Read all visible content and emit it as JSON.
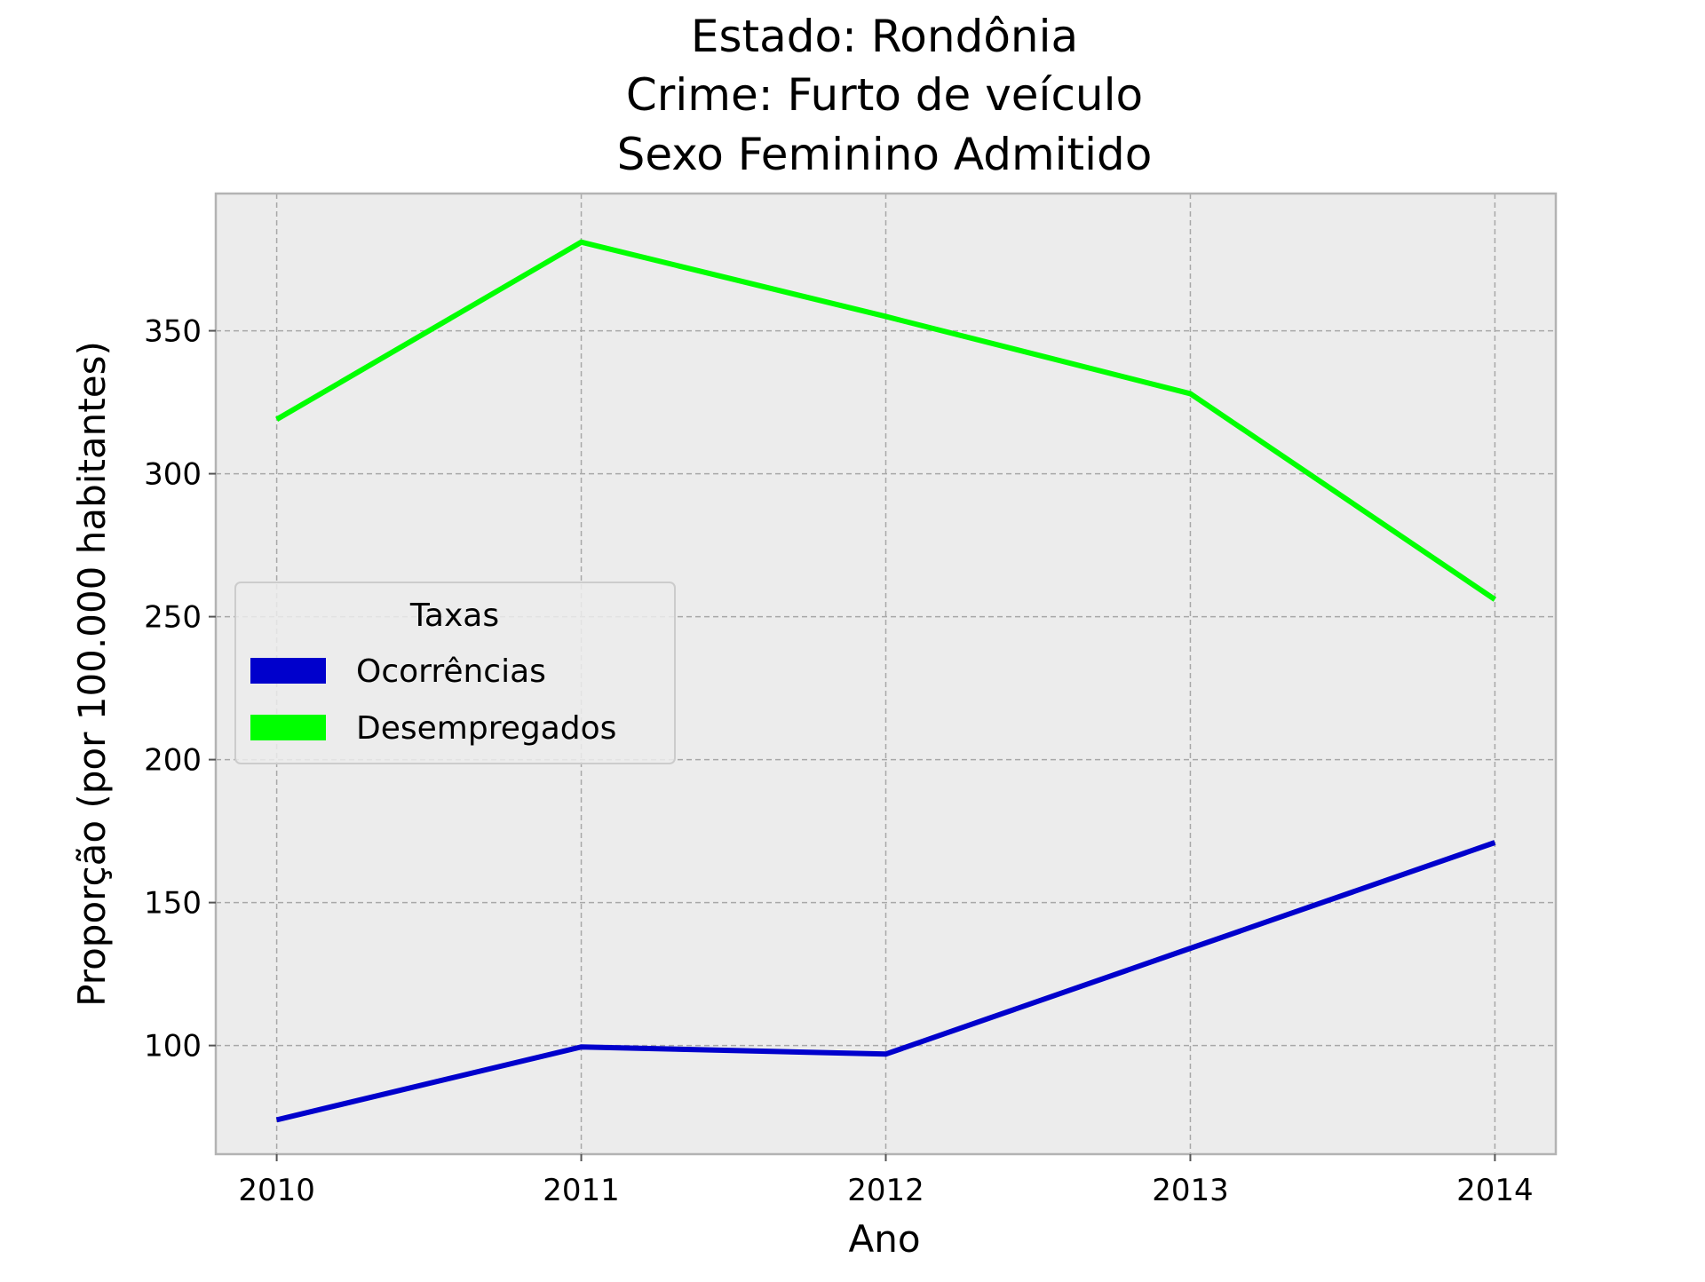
{
  "chart_data": {
    "type": "line",
    "title_lines": [
      "Estado: Rondônia",
      "Crime: Furto de veículo",
      "Sexo  Feminino   Admitido"
    ],
    "xlabel": "Ano",
    "ylabel": "Proporção (por 100.000 habitantes)",
    "x": [
      2010,
      2011,
      2012,
      2013,
      2014
    ],
    "x_tick_labels": [
      "2010",
      "2011",
      "2012",
      "2013",
      "2014"
    ],
    "y_ticks": [
      100,
      150,
      200,
      250,
      300,
      350
    ],
    "y_tick_labels": [
      "100",
      "150",
      "200",
      "250",
      "300",
      "350"
    ],
    "xlim": [
      2009.8,
      2014.2
    ],
    "ylim": [
      62,
      398
    ],
    "grid": true,
    "legend": {
      "title": "Taxas",
      "placement": "center-left"
    },
    "series": [
      {
        "name": "Ocorrências",
        "color": "#0000cc",
        "values": [
          74,
          99.5,
          97,
          134,
          171
        ]
      },
      {
        "name": "Desempregados",
        "color": "#00ff00",
        "values": [
          319,
          381,
          355,
          328,
          256
        ]
      }
    ]
  }
}
